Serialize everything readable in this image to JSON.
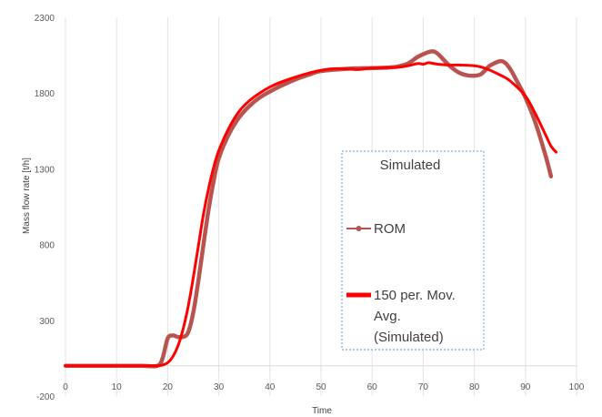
{
  "chart_data": {
    "type": "line",
    "title": "",
    "xlabel": "Time",
    "ylabel": "Mass flow rate [t/h]",
    "xlim": [
      0,
      100
    ],
    "ylim": [
      -200,
      2300
    ],
    "x_ticks": [
      "0",
      "10",
      "20",
      "30",
      "40",
      "50",
      "60",
      "70",
      "80",
      "90",
      "100"
    ],
    "y_ticks": [
      "-200",
      "300",
      "800",
      "1300",
      "1800",
      "2300"
    ],
    "grid": "vertical",
    "legend": {
      "title": "Simulated",
      "placement": "center-right",
      "entries": [
        "ROM",
        "150 per. Mov. Avg. (Simulated)"
      ],
      "entry_lines": [
        [
          "ROM"
        ],
        [
          "150 per. Mov.",
          "Avg.",
          "(Simulated)"
        ]
      ]
    },
    "colors": {
      "rom": "#b85450",
      "moving_avg": "#ff0000",
      "legend_border": "#5b9bd5"
    },
    "series": [
      {
        "name": "ROM",
        "x": [
          0,
          5,
          10,
          15,
          18,
          19,
          20,
          21,
          22,
          23,
          24,
          25,
          26,
          27,
          28,
          29,
          30,
          32,
          34,
          36,
          38,
          40,
          42,
          45,
          48,
          50,
          55,
          60,
          63,
          65,
          67,
          69,
          71,
          72,
          73,
          75,
          77,
          79,
          81,
          82,
          83,
          85,
          86,
          87,
          88,
          90,
          92,
          94,
          95
        ],
        "values": [
          0,
          0,
          0,
          0,
          0,
          50,
          180,
          200,
          190,
          190,
          220,
          350,
          560,
          800,
          1030,
          1220,
          1370,
          1530,
          1640,
          1715,
          1770,
          1810,
          1845,
          1890,
          1925,
          1945,
          1960,
          1965,
          1968,
          1975,
          1995,
          2040,
          2070,
          2075,
          2055,
          1985,
          1935,
          1915,
          1920,
          1945,
          1980,
          2010,
          2000,
          1960,
          1900,
          1770,
          1600,
          1380,
          1250
        ]
      },
      {
        "name": "150 per. Mov. Avg. (Simulated)",
        "x": [
          0,
          5,
          10,
          15,
          18,
          19,
          20,
          21,
          22,
          23,
          24,
          25,
          26,
          27,
          28,
          29,
          30,
          32,
          34,
          36,
          38,
          40,
          42,
          45,
          48,
          50,
          52,
          55,
          57,
          60,
          63,
          65,
          67,
          69,
          70,
          71,
          72,
          73,
          75,
          77,
          80,
          82,
          85,
          87,
          90,
          92,
          94,
          95,
          96
        ],
        "values": [
          0,
          0,
          0,
          0,
          0,
          5,
          20,
          60,
          130,
          240,
          390,
          580,
          790,
          1000,
          1170,
          1310,
          1420,
          1570,
          1680,
          1750,
          1800,
          1840,
          1870,
          1905,
          1935,
          1950,
          1960,
          1960,
          1955,
          1965,
          1968,
          1970,
          1980,
          1995,
          1990,
          2000,
          1995,
          1990,
          1985,
          1985,
          1980,
          1965,
          1920,
          1880,
          1780,
          1660,
          1520,
          1450,
          1410
        ]
      }
    ]
  }
}
